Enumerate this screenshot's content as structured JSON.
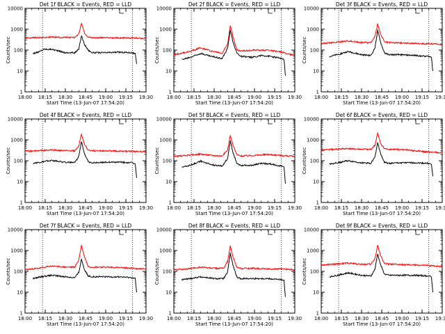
{
  "chart_data": [
    {
      "type": "line",
      "title": "Det 1f BLACK = Events, RED = LLD",
      "xlabel": "Start Time (13-Jun-07 17:54:20)",
      "ylabel": "Counts/sec",
      "x_ticks": [
        "18:00",
        "18:15",
        "18:30",
        "18:45",
        "19:00",
        "19:15",
        "19:30"
      ],
      "y_ticks": [
        "1",
        "10",
        "100",
        "1000",
        "10000"
      ],
      "ylim": [
        1,
        10000
      ],
      "y_scale": "log",
      "dashed_lines_at": [
        "18:13",
        "19:20"
      ],
      "series": [
        {
          "color": "#000000",
          "x": [
            "18:06",
            "18:10",
            "18:14",
            "18:20",
            "18:30",
            "18:37",
            "18:40",
            "18:42",
            "18:44",
            "18:47",
            "18:50",
            "19:00",
            "19:10",
            "19:20",
            "19:22",
            "19:23"
          ],
          "y": [
            70,
            80,
            110,
            110,
            75,
            75,
            110,
            500,
            200,
            100,
            75,
            75,
            80,
            75,
            65,
            22
          ]
        },
        {
          "color": "#ff0000",
          "x": [
            "18:00",
            "18:10",
            "18:20",
            "18:30",
            "18:37",
            "18:40",
            "18:42",
            "18:44",
            "18:47",
            "18:50",
            "19:00",
            "19:10",
            "19:20",
            "19:30"
          ],
          "y": [
            380,
            400,
            420,
            400,
            400,
            600,
            2000,
            700,
            420,
            400,
            390,
            380,
            380,
            360
          ]
        }
      ]
    },
    {
      "type": "line",
      "title": "Det 2f BLACK = Events, RED = LLD",
      "xlabel": "Start Time (13-Jun-07 17:54:20)",
      "ylabel": "Counts/sec",
      "x_ticks": [
        "18:00",
        "18:15",
        "18:30",
        "18:45",
        "19:00",
        "19:15",
        "19:30"
      ],
      "y_ticks": [
        "1",
        "10",
        "100",
        "1000",
        "10000"
      ],
      "ylim": [
        1,
        10000
      ],
      "y_scale": "log",
      "dashed_lines_at": [
        "18:13",
        "19:20"
      ],
      "series": [
        {
          "color": "#000000",
          "x": [
            "18:06",
            "18:12",
            "18:20",
            "18:28",
            "18:36",
            "18:40",
            "18:42",
            "18:44",
            "18:47",
            "18:50",
            "18:58",
            "19:05",
            "19:12",
            "19:20",
            "19:22",
            "19:23"
          ],
          "y": [
            35,
            45,
            70,
            50,
            40,
            120,
            900,
            250,
            70,
            50,
            45,
            55,
            50,
            40,
            35,
            6
          ]
        },
        {
          "color": "#ff0000",
          "x": [
            "18:00",
            "18:10",
            "18:20",
            "18:28",
            "18:36",
            "18:40",
            "18:42",
            "18:44",
            "18:47",
            "18:50",
            "19:00",
            "19:10",
            "19:20",
            "19:30"
          ],
          "y": [
            60,
            80,
            130,
            90,
            70,
            200,
            1600,
            450,
            100,
            90,
            100,
            100,
            80,
            55
          ]
        }
      ]
    },
    {
      "type": "line",
      "title": "Det 3f BLACK = Events, RED = LLD",
      "xlabel": "Start Time (13-Jun-07 17:54:20)",
      "ylabel": "Counts/sec",
      "x_ticks": [
        "18:00",
        "18:15",
        "18:30",
        "18:45",
        "19:00",
        "19:15",
        "19:30"
      ],
      "y_ticks": [
        "1",
        "10",
        "100",
        "1000",
        "10000"
      ],
      "ylim": [
        1,
        10000
      ],
      "y_scale": "log",
      "dashed_lines_at": [
        "18:13",
        "19:20"
      ],
      "series": [
        {
          "color": "#000000",
          "x": [
            "18:06",
            "18:12",
            "18:20",
            "18:30",
            "18:37",
            "18:40",
            "18:42",
            "18:44",
            "18:47",
            "18:50",
            "19:00",
            "19:10",
            "19:20",
            "19:22",
            "19:23"
          ],
          "y": [
            50,
            60,
            85,
            60,
            55,
            130,
            900,
            250,
            75,
            60,
            60,
            55,
            50,
            45,
            10
          ]
        },
        {
          "color": "#ff0000",
          "x": [
            "18:00",
            "18:10",
            "18:20",
            "18:30",
            "18:37",
            "18:40",
            "18:42",
            "18:44",
            "18:47",
            "18:50",
            "19:00",
            "19:10",
            "19:20",
            "19:30"
          ],
          "y": [
            210,
            230,
            280,
            230,
            230,
            450,
            1800,
            600,
            250,
            230,
            220,
            210,
            200,
            190
          ]
        }
      ]
    },
    {
      "type": "line",
      "title": "Det 4f BLACK = Events, RED = LLD",
      "xlabel": "Start Time (13-Jun-07 17:54:20)",
      "ylabel": "Counts/sec",
      "x_ticks": [
        "18:00",
        "18:15",
        "18:30",
        "18:45",
        "19:00",
        "19:15",
        "19:30"
      ],
      "y_ticks": [
        "1",
        "10",
        "100",
        "1000",
        "10000"
      ],
      "ylim": [
        1,
        10000
      ],
      "y_scale": "log",
      "dashed_lines_at": [
        "18:13",
        "19:20"
      ],
      "series": [
        {
          "color": "#000000",
          "x": [
            "18:06",
            "18:12",
            "18:20",
            "18:30",
            "18:37",
            "18:40",
            "18:42",
            "18:44",
            "18:47",
            "18:50",
            "19:00",
            "19:10",
            "19:20",
            "19:22",
            "19:23"
          ],
          "y": [
            75,
            85,
            105,
            85,
            80,
            160,
            850,
            250,
            90,
            80,
            85,
            85,
            80,
            70,
            15
          ]
        },
        {
          "color": "#ff0000",
          "x": [
            "18:00",
            "18:10",
            "18:20",
            "18:30",
            "18:37",
            "18:40",
            "18:42",
            "18:44",
            "18:47",
            "18:50",
            "19:00",
            "19:10",
            "19:20",
            "19:30"
          ],
          "y": [
            290,
            300,
            330,
            300,
            300,
            500,
            1900,
            650,
            320,
            300,
            300,
            290,
            280,
            270
          ]
        }
      ]
    },
    {
      "type": "line",
      "title": "Det 5f BLACK = Events, RED = LLD",
      "xlabel": "Start Time (13-Jun-07 17:54:20)",
      "ylabel": "Counts/sec",
      "x_ticks": [
        "18:00",
        "18:15",
        "18:30",
        "18:45",
        "19:00",
        "19:15",
        "19:30"
      ],
      "y_ticks": [
        "1",
        "10",
        "100",
        "1000",
        "10000"
      ],
      "ylim": [
        1,
        10000
      ],
      "y_scale": "log",
      "dashed_lines_at": [
        "18:13",
        "19:20"
      ],
      "series": [
        {
          "color": "#000000",
          "x": [
            "18:06",
            "18:12",
            "18:20",
            "18:28",
            "18:36",
            "18:40",
            "18:42",
            "18:44",
            "18:47",
            "18:50",
            "18:58",
            "19:05",
            "19:12",
            "19:20",
            "19:22",
            "19:23"
          ],
          "y": [
            50,
            60,
            95,
            65,
            55,
            130,
            900,
            250,
            75,
            60,
            60,
            75,
            70,
            55,
            50,
            8
          ]
        },
        {
          "color": "#ff0000",
          "x": [
            "18:00",
            "18:10",
            "18:20",
            "18:28",
            "18:36",
            "18:40",
            "18:42",
            "18:44",
            "18:47",
            "18:50",
            "19:00",
            "19:10",
            "19:20",
            "19:30"
          ],
          "y": [
            160,
            180,
            210,
            180,
            170,
            330,
            1700,
            550,
            190,
            170,
            180,
            200,
            180,
            160
          ]
        }
      ]
    },
    {
      "type": "line",
      "title": "Det 6f BLACK = Events, RED = LLD",
      "xlabel": "Start Time (13-Jun-07 17:54:20)",
      "ylabel": "Counts/sec",
      "x_ticks": [
        "18:00",
        "18:15",
        "18:30",
        "18:45",
        "19:00",
        "19:15",
        "19:30"
      ],
      "y_ticks": [
        "1",
        "10",
        "100",
        "1000",
        "10000"
      ],
      "ylim": [
        1,
        10000
      ],
      "y_scale": "log",
      "dashed_lines_at": [
        "18:13",
        "19:20"
      ],
      "series": [
        {
          "color": "#000000",
          "x": [
            "18:06",
            "18:12",
            "18:20",
            "18:30",
            "18:37",
            "18:40",
            "18:42",
            "18:44",
            "18:47",
            "18:50",
            "19:00",
            "19:10",
            "19:20",
            "19:22",
            "19:23"
          ],
          "y": [
            70,
            80,
            100,
            80,
            75,
            150,
            800,
            230,
            85,
            75,
            80,
            80,
            75,
            65,
            18
          ]
        },
        {
          "color": "#ff0000",
          "x": [
            "18:00",
            "18:10",
            "18:20",
            "18:30",
            "18:37",
            "18:40",
            "18:42",
            "18:44",
            "18:47",
            "18:50",
            "19:00",
            "19:10",
            "19:20",
            "19:30"
          ],
          "y": [
            330,
            350,
            380,
            350,
            350,
            560,
            2100,
            700,
            370,
            350,
            340,
            300,
            260,
            240
          ]
        }
      ]
    },
    {
      "type": "line",
      "title": "Det 7f BLACK = Events, RED = LLD",
      "xlabel": "Start Time (13-Jun-07 17:54:20)",
      "ylabel": "Counts/sec",
      "x_ticks": [
        "18:00",
        "18:15",
        "18:30",
        "18:45",
        "19:00",
        "19:15",
        "19:30"
      ],
      "y_ticks": [
        "1",
        "10",
        "100",
        "1000",
        "10000"
      ],
      "ylim": [
        1,
        10000
      ],
      "y_scale": "log",
      "dashed_lines_at": [
        "18:13",
        "19:20"
      ],
      "series": [
        {
          "color": "#000000",
          "x": [
            "18:06",
            "18:12",
            "18:20",
            "18:30",
            "18:37",
            "18:40",
            "18:42",
            "18:44",
            "18:47",
            "18:50",
            "19:00",
            "19:10",
            "19:20",
            "19:22",
            "19:23"
          ],
          "y": [
            45,
            55,
            65,
            55,
            50,
            90,
            400,
            130,
            60,
            55,
            55,
            55,
            50,
            45,
            10
          ]
        },
        {
          "color": "#ff0000",
          "x": [
            "18:00",
            "18:10",
            "18:20",
            "18:30",
            "18:37",
            "18:40",
            "18:42",
            "18:44",
            "18:47",
            "18:50",
            "19:00",
            "19:10",
            "19:20",
            "19:30"
          ],
          "y": [
            120,
            140,
            180,
            160,
            160,
            350,
            1800,
            550,
            170,
            160,
            160,
            150,
            140,
            130
          ]
        }
      ]
    },
    {
      "type": "line",
      "title": "Det 8f BLACK = Events, RED = LLD",
      "xlabel": "Start Time (13-Jun-07 17:54:20)",
      "ylabel": "Counts/sec",
      "x_ticks": [
        "18:00",
        "18:15",
        "18:30",
        "18:45",
        "19:00",
        "19:15",
        "19:30"
      ],
      "y_ticks": [
        "1",
        "10",
        "100",
        "1000",
        "10000"
      ],
      "ylim": [
        1,
        10000
      ],
      "y_scale": "log",
      "dashed_lines_at": [
        "18:13",
        "19:20"
      ],
      "series": [
        {
          "color": "#000000",
          "x": [
            "18:06",
            "18:12",
            "18:20",
            "18:30",
            "18:37",
            "18:40",
            "18:42",
            "18:44",
            "18:47",
            "18:50",
            "19:00",
            "19:10",
            "19:20",
            "19:22",
            "19:23"
          ],
          "y": [
            40,
            45,
            55,
            45,
            45,
            90,
            750,
            200,
            50,
            45,
            45,
            45,
            40,
            35,
            6
          ]
        },
        {
          "color": "#ff0000",
          "x": [
            "18:00",
            "18:10",
            "18:20",
            "18:30",
            "18:37",
            "18:40",
            "18:42",
            "18:44",
            "18:47",
            "18:50",
            "19:00",
            "19:10",
            "19:20",
            "19:30"
          ],
          "y": [
            120,
            130,
            160,
            140,
            140,
            300,
            1600,
            500,
            150,
            140,
            140,
            130,
            130,
            120
          ]
        }
      ]
    },
    {
      "type": "line",
      "title": "Det 9f BLACK = Events, RED = LLD",
      "xlabel": "Start Time (13-Jun-07 17:54:20)",
      "ylabel": "Counts/sec",
      "x_ticks": [
        "18:00",
        "18:15",
        "18:30",
        "18:45",
        "19:00",
        "19:15",
        "19:30"
      ],
      "y_ticks": [
        "1",
        "10",
        "100",
        "1000",
        "10000"
      ],
      "ylim": [
        1,
        10000
      ],
      "y_scale": "log",
      "dashed_lines_at": [
        "18:13",
        "19:20"
      ],
      "series": [
        {
          "color": "#000000",
          "x": [
            "18:06",
            "18:12",
            "18:20",
            "18:30",
            "18:37",
            "18:40",
            "18:42",
            "18:44",
            "18:47",
            "18:50",
            "19:00",
            "19:10",
            "19:20",
            "19:22",
            "19:23"
          ],
          "y": [
            55,
            65,
            85,
            65,
            60,
            130,
            700,
            220,
            75,
            65,
            65,
            65,
            60,
            55,
            10
          ]
        },
        {
          "color": "#ff0000",
          "x": [
            "18:00",
            "18:10",
            "18:20",
            "18:30",
            "18:37",
            "18:40",
            "18:42",
            "18:44",
            "18:47",
            "18:50",
            "19:00",
            "19:10",
            "19:20",
            "19:30"
          ],
          "y": [
            200,
            220,
            250,
            220,
            220,
            420,
            1800,
            600,
            240,
            220,
            210,
            200,
            190,
            170
          ]
        }
      ]
    }
  ]
}
